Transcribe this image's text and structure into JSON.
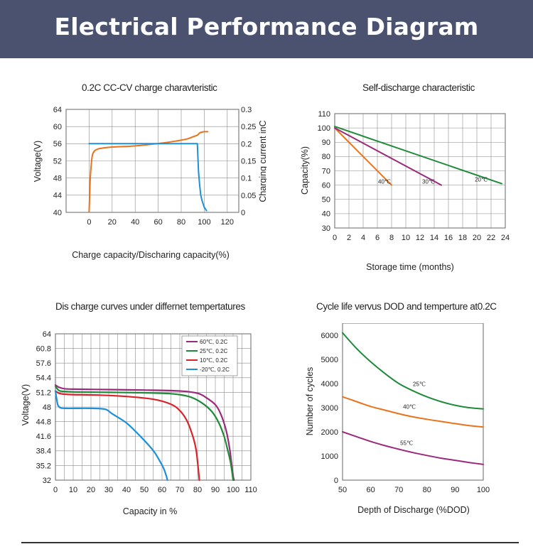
{
  "header": {
    "title": "Electrical Performance Diagram"
  },
  "chart_data": [
    {
      "type": "line",
      "title": "0.2C CC-CV charge charavteristic",
      "xlabel": "Charge capacity/Discharing capacity(%)",
      "ylabel": "Voltage(V)",
      "y2label": "Charging current inC",
      "xlim": [
        -20,
        130
      ],
      "ylim": [
        40,
        64
      ],
      "y2lim": [
        0,
        0.3
      ],
      "xticks": [
        "0",
        "20",
        "40",
        "60",
        "80",
        "100",
        "120"
      ],
      "yticks": [
        "40",
        "44",
        "48",
        "52",
        "56",
        "60",
        "64"
      ],
      "y2ticks": [
        "0",
        "0.05",
        "0.1",
        "0.15",
        "0.2",
        "0.25",
        "0.3"
      ],
      "grid": true,
      "series": [
        {
          "axis": "left",
          "color": "#e8731c",
          "x": [
            0,
            0.5,
            1,
            2,
            3,
            5,
            8,
            12,
            18,
            25,
            35,
            45,
            55,
            65,
            75,
            85,
            90,
            94,
            96,
            98,
            100,
            103
          ],
          "y": [
            40.2,
            44,
            48,
            51.5,
            53.5,
            54.4,
            54.8,
            55,
            55.2,
            55.3,
            55.4,
            55.6,
            55.9,
            56.2,
            56.6,
            57.1,
            57.6,
            58,
            58.5,
            58.7,
            58.8,
            58.8
          ]
        },
        {
          "axis": "right",
          "color": "#1e8fd8",
          "x": [
            0,
            20,
            40,
            60,
            80,
            93,
            94,
            95,
            96,
            97,
            98,
            99,
            100,
            101,
            102
          ],
          "y": [
            0.2,
            0.2,
            0.2,
            0.2,
            0.2,
            0.2,
            0.2,
            0.12,
            0.08,
            0.05,
            0.035,
            0.025,
            0.015,
            0.01,
            0.005
          ]
        }
      ]
    },
    {
      "type": "line",
      "title": "Self-discharge characteristic",
      "xlabel": "Storage time (months)",
      "ylabel": "Capacity(%)",
      "xlim": [
        0,
        24
      ],
      "ylim": [
        30,
        110
      ],
      "xticks": [
        "0",
        "2",
        "4",
        "6",
        "8",
        "10",
        "12",
        "14",
        "16",
        "18",
        "20",
        "22",
        "24"
      ],
      "yticks": [
        "30",
        "40",
        "50",
        "60",
        "70",
        "80",
        "90",
        "100",
        "110"
      ],
      "grid": true,
      "series": [
        {
          "name": "40℃",
          "color": "#e8731c",
          "x": [
            0,
            2,
            8
          ],
          "y": [
            100,
            90,
            60
          ]
        },
        {
          "name": "30℃",
          "color": "#9b2a7a",
          "x": [
            0,
            15
          ],
          "y": [
            100,
            60
          ]
        },
        {
          "name": "20℃",
          "color": "#1f8a3a",
          "x": [
            0,
            23.5
          ],
          "y": [
            101,
            61
          ]
        }
      ]
    },
    {
      "type": "line",
      "title": "Dis charge curves under differnet tempertatures",
      "xlabel": "Capacity in %",
      "ylabel": "Voltage(V)",
      "xlim": [
        0,
        110
      ],
      "ylim": [
        32,
        64
      ],
      "xticks": [
        "0",
        "10",
        "20",
        "30",
        "40",
        "50",
        "60",
        "70",
        "80",
        "90",
        "100",
        "110"
      ],
      "yticks": [
        "32",
        "35.2",
        "38.4",
        "41.6",
        "44.8",
        "48",
        "51.2",
        "54.4",
        "57.6",
        "60.8",
        "64"
      ],
      "grid": true,
      "series": [
        {
          "name": "60℃, 0.2C",
          "color": "#9b2a7a",
          "x": [
            0,
            2,
            5,
            10,
            30,
            50,
            70,
            80,
            85,
            90,
            93,
            96,
            98,
            99,
            100,
            100.5
          ],
          "y": [
            52.8,
            52.3,
            52,
            51.9,
            51.8,
            51.7,
            51.5,
            51,
            50,
            48.5,
            46.5,
            43,
            39,
            36,
            33,
            32
          ]
        },
        {
          "name": "25℃, 0.2C",
          "color": "#1f8a3a",
          "x": [
            0,
            2,
            5,
            10,
            30,
            50,
            65,
            75,
            82,
            88,
            92,
            95,
            97,
            98.5,
            99.5,
            100
          ],
          "y": [
            52.5,
            51.6,
            51.4,
            51.3,
            51.2,
            51.1,
            50.9,
            50.3,
            49,
            47,
            44.5,
            41.5,
            38.5,
            36,
            33.5,
            32
          ]
        },
        {
          "name": "10℃, 0.2C",
          "color": "#d8232a",
          "x": [
            0,
            2,
            5,
            10,
            25,
            40,
            55,
            65,
            70,
            74,
            77,
            79,
            80,
            80.5,
            81
          ],
          "y": [
            51.5,
            51,
            50.8,
            50.7,
            50.6,
            50.3,
            49.7,
            48.6,
            47.2,
            45,
            42,
            39,
            36,
            34,
            32
          ]
        },
        {
          "name": "-20℃, 0.2C",
          "color": "#1e8fd8",
          "x": [
            0,
            0.8,
            1.5,
            3,
            6,
            10,
            20,
            28,
            32,
            40,
            48,
            55,
            59,
            61,
            62.5,
            63
          ],
          "y": [
            51.5,
            49.5,
            48.3,
            47.8,
            47.7,
            47.7,
            47.7,
            47.5,
            46.5,
            44.5,
            41.5,
            38.5,
            36,
            34.5,
            32.8,
            32
          ]
        }
      ]
    },
    {
      "type": "line",
      "title": "Cycle life vervus DOD and temperture at0.2C",
      "xlabel": "Depth of Discharge (%DOD)",
      "ylabel": "Number of cycles",
      "xlim": [
        50,
        100
      ],
      "ylim": [
        0,
        6500
      ],
      "xticks": [
        "50",
        "60",
        "70",
        "80",
        "90",
        "100"
      ],
      "yticks": [
        "0",
        "1000",
        "2000",
        "3000",
        "4000",
        "5000",
        "6000"
      ],
      "grid": false,
      "series": [
        {
          "name": "25℃",
          "color": "#1f8a3a",
          "x": [
            50,
            55,
            60,
            65,
            70,
            75,
            80,
            85,
            90,
            95,
            100
          ],
          "y": [
            6100,
            5450,
            4900,
            4420,
            4000,
            3700,
            3450,
            3250,
            3100,
            3000,
            2950
          ]
        },
        {
          "name": "40℃",
          "color": "#e8731c",
          "x": [
            50,
            55,
            60,
            65,
            70,
            75,
            80,
            85,
            90,
            95,
            100
          ],
          "y": [
            3450,
            3250,
            3050,
            2900,
            2750,
            2620,
            2520,
            2430,
            2340,
            2260,
            2200
          ]
        },
        {
          "name": "55℃",
          "color": "#9b2a7a",
          "x": [
            50,
            55,
            60,
            65,
            70,
            75,
            80,
            85,
            90,
            95,
            100
          ],
          "y": [
            2000,
            1800,
            1600,
            1430,
            1280,
            1140,
            1020,
            910,
            820,
            730,
            650
          ]
        }
      ]
    }
  ]
}
